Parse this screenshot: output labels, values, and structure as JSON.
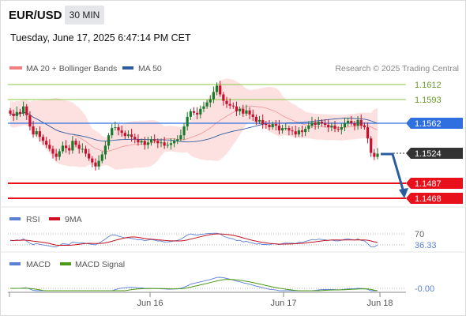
{
  "header": {
    "symbol": "EUR/USD",
    "timeframe": "30 MIN",
    "datetime": "Tuesday, June 17, 2025 6:47:14 PM CET"
  },
  "legend": {
    "ma20": {
      "label": "MA 20 + Bollinger Bands",
      "color": "#f08080"
    },
    "ma50": {
      "label": "MA 50",
      "color": "#2f5da0"
    },
    "credit": "Research © 2025 Trading Central"
  },
  "levels": {
    "r2": "1.1612",
    "r1": "1.1593",
    "pivot": "1.1562",
    "last": "1.1524",
    "s1": "1.1487",
    "s2": "1.1468"
  },
  "rsi_panel": {
    "rsi_label": "RSI",
    "ma_label": "9MA",
    "level_70": "70",
    "value": "36.33"
  },
  "macd_panel": {
    "macd_label": "MACD",
    "signal_label": "MACD Signal",
    "value": "-0.00"
  },
  "xaxis": {
    "labels": [
      "Jun 16",
      "Jun 18",
      "Jun 17"
    ]
  },
  "colors": {
    "resistance": "#8dc63f",
    "pivot": "#2f6fe0",
    "support": "#e8101a",
    "candle_up": "#1a7a2c",
    "candle_down": "#c8102e",
    "band_fill": "#fde0e0",
    "arrow": "#2a5d9f"
  },
  "chart_data": {
    "type": "candlestick",
    "y_range": [
      1.1445,
      1.1625
    ],
    "levels": [
      1.1612,
      1.1593,
      1.1562,
      1.1487,
      1.1468
    ],
    "last_price": 1.1524,
    "close_series": [
      1.1574,
      1.1571,
      1.1576,
      1.1574,
      1.1583,
      1.1572,
      1.1558,
      1.1548,
      1.1552,
      1.1545,
      1.154,
      1.1535,
      1.153,
      1.1524,
      1.152,
      1.1527,
      1.1534,
      1.1531,
      1.1528,
      1.154,
      1.1535,
      1.153,
      1.153,
      1.1524,
      1.1518,
      1.1513,
      1.1508,
      1.1515,
      1.1523,
      1.1534,
      1.1547,
      1.1556,
      1.1557,
      1.1553,
      1.155,
      1.1546,
      1.1548,
      1.1545,
      1.1542,
      1.1538,
      1.154,
      1.1535,
      1.1538,
      1.1542,
      1.154,
      1.1537,
      1.1538,
      1.1534,
      1.1535,
      1.1537,
      1.154,
      1.1542,
      1.1547,
      1.1558,
      1.157,
      1.1577,
      1.1575,
      1.1573,
      1.158,
      1.1583,
      1.1588,
      1.1592,
      1.1601,
      1.1609,
      1.1598,
      1.159,
      1.1586,
      1.1584,
      1.1583,
      1.1577,
      1.158,
      1.1574,
      1.1578,
      1.1573,
      1.157,
      1.1564,
      1.1566,
      1.1561,
      1.156,
      1.1557,
      1.1561,
      1.1559,
      1.1553,
      1.1556,
      1.1556,
      1.1553,
      1.1552,
      1.1548,
      1.1553,
      1.1551,
      1.1555,
      1.1559,
      1.1563,
      1.156,
      1.1564,
      1.1562,
      1.156,
      1.1557,
      1.1559,
      1.1555,
      1.1554,
      1.1557,
      1.1562,
      1.1565,
      1.1562,
      1.1559,
      1.1566,
      1.1559,
      1.1557,
      1.1543,
      1.1525,
      1.152,
      1.1524
    ],
    "rsi": {
      "level": 70,
      "last": 36.33
    },
    "macd": {
      "last": -0.0
    }
  }
}
